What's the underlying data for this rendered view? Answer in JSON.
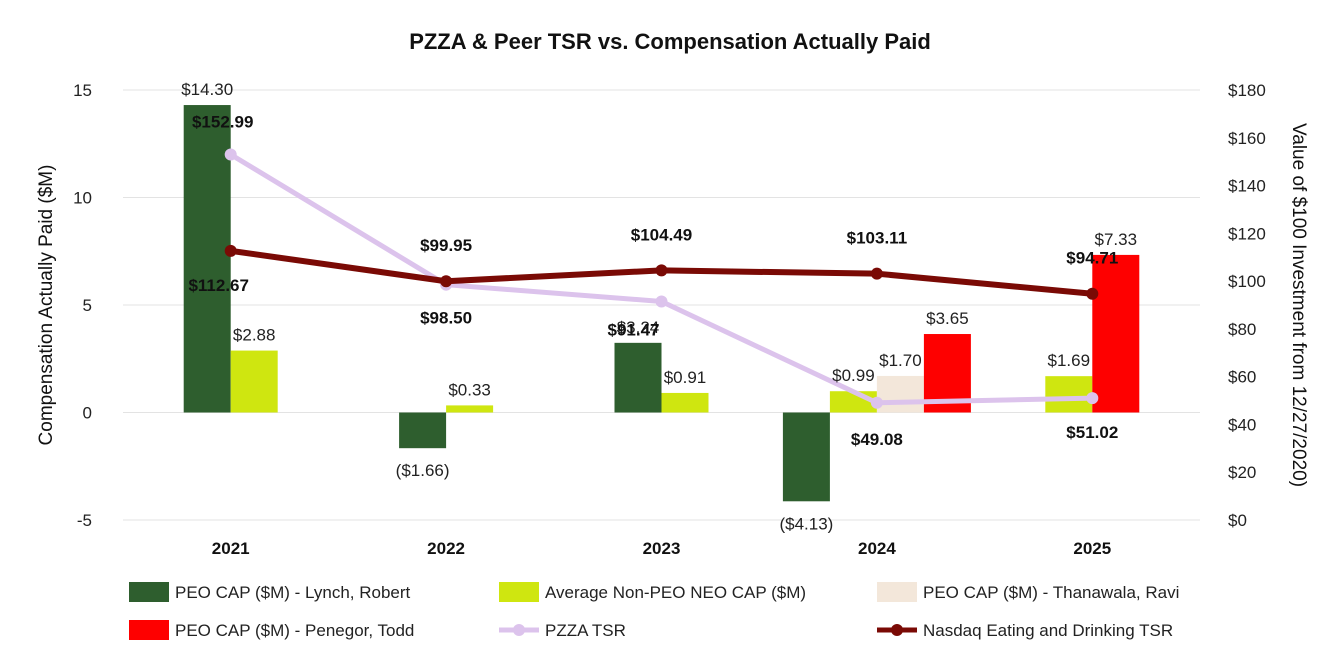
{
  "chart_data": {
    "type": "bar",
    "title": "PZZA & Peer TSR vs. Compensation Actually Paid",
    "categories": [
      "2021",
      "2022",
      "2023",
      "2024",
      "2025"
    ],
    "ylabel": "Compensation Actually Paid ($M)",
    "ylim": [
      -5,
      15
    ],
    "yticks": [
      "-5",
      "0",
      "5",
      "10",
      "15"
    ],
    "y2label": "Value of $100 Investment from 12/27/2020)",
    "y2lim": [
      0,
      180
    ],
    "y2ticks": [
      "$0",
      "$20",
      "$40",
      "$60",
      "$80",
      "$100",
      "$120",
      "$140",
      "$160",
      "$180"
    ],
    "grid": true,
    "legend_position": "bottom",
    "series": [
      {
        "name": "PEO CAP ($M) - Lynch, Robert",
        "kind": "bar",
        "color": "#2e5e2e",
        "values": [
          14.3,
          -1.66,
          3.24,
          -4.13,
          null
        ],
        "labels": [
          "$14.30",
          "($1.66)",
          "$3.24",
          "($4.13)",
          ""
        ]
      },
      {
        "name": "Average Non-PEO NEO CAP ($M)",
        "kind": "bar",
        "color": "#cfe610",
        "values": [
          2.88,
          0.33,
          0.91,
          0.99,
          1.69
        ],
        "labels": [
          "$2.88",
          "$0.33",
          "$0.91",
          "$0.99",
          "$1.69"
        ]
      },
      {
        "name": "PEO CAP ($M) - Thanawala, Ravi",
        "kind": "bar",
        "color": "#f3e7da",
        "values": [
          null,
          null,
          null,
          1.7,
          null
        ],
        "labels": [
          "",
          "",
          "",
          "$1.70",
          ""
        ]
      },
      {
        "name": "PEO CAP ($M) - Penegor, Todd",
        "kind": "bar",
        "color": "#fe0000",
        "values": [
          null,
          null,
          null,
          3.65,
          7.33
        ],
        "labels": [
          "",
          "",
          "",
          "$3.65",
          "$7.33"
        ]
      },
      {
        "name": "PZZA TSR",
        "kind": "line",
        "axis": "right",
        "color": "#dcc3ec",
        "values": [
          152.99,
          98.5,
          91.47,
          49.08,
          51.02
        ],
        "labels": [
          "$152.99",
          "$98.50",
          "$91.47",
          "$49.08",
          "$51.02"
        ]
      },
      {
        "name": "Nasdaq Eating and Drinking TSR",
        "kind": "line",
        "axis": "right",
        "color": "#7a0a05",
        "values": [
          112.67,
          99.95,
          104.49,
          103.11,
          94.71
        ],
        "labels": [
          "$112.67",
          "$99.95",
          "$104.49",
          "$103.11",
          "$94.71"
        ]
      }
    ]
  }
}
